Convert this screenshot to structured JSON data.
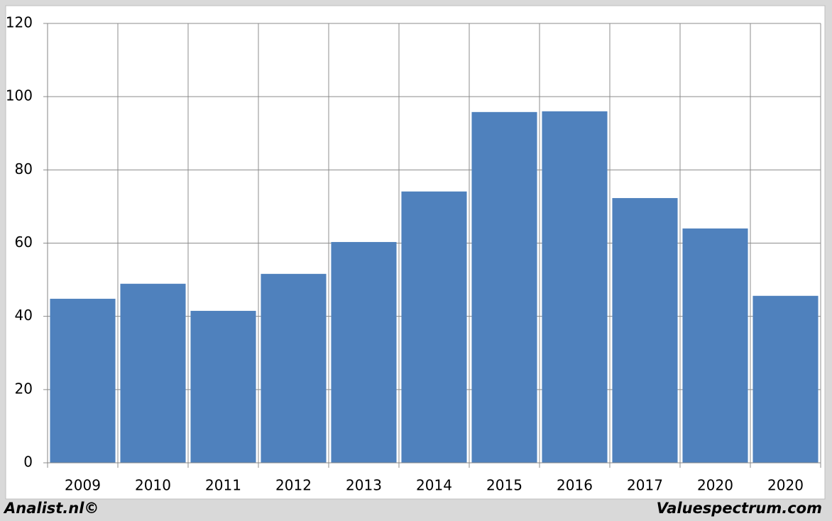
{
  "chart_data": {
    "type": "bar",
    "categories": [
      "2009",
      "2010",
      "2011",
      "2012",
      "2013",
      "2014",
      "2015",
      "2016",
      "2017",
      "2020",
      "2020"
    ],
    "values": [
      44.8,
      48.9,
      41.5,
      51.6,
      60.3,
      74.1,
      95.8,
      96.0,
      72.3,
      64.0,
      45.6
    ],
    "color": "#4f81bd",
    "ylim": [
      0,
      120
    ],
    "yticks": [
      0,
      20,
      40,
      60,
      80,
      100,
      120
    ],
    "grid": true
  },
  "footer": {
    "left": "Analist.nl©",
    "right": "Valuespectrum.com"
  }
}
